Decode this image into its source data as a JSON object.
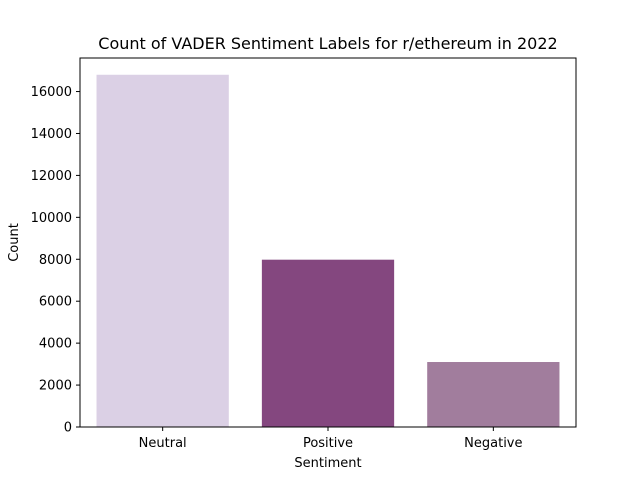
{
  "chart_data": {
    "type": "bar",
    "title": "Count of VADER Sentiment Labels for r/ethereum in 2022",
    "xlabel": "Sentiment",
    "ylabel": "Count",
    "categories": [
      "Neutral",
      "Positive",
      "Negative"
    ],
    "values": [
      16800,
      7980,
      3100
    ],
    "colors": [
      "#dbd0e5",
      "#84477f",
      "#a17d9d"
    ],
    "ylim": [
      0,
      17600
    ],
    "yticks": [
      0,
      2000,
      4000,
      6000,
      8000,
      10000,
      12000,
      14000,
      16000
    ],
    "ytick_labels": [
      "0",
      "2000",
      "4000",
      "6000",
      "8000",
      "10000",
      "12000",
      "14000",
      "16000"
    ],
    "grid": false,
    "legend": "none"
  }
}
